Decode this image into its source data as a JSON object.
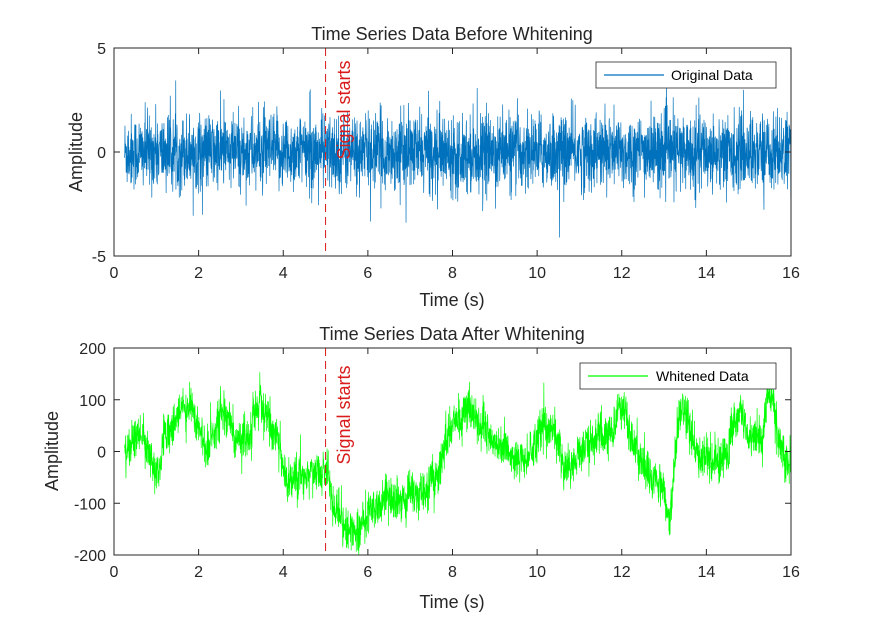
{
  "chart_data": [
    {
      "type": "line",
      "title": "Time Series Data Before Whitening",
      "xlabel": "Time (s)",
      "ylabel": "Amplitude",
      "xlim": [
        0,
        16
      ],
      "ylim": [
        -5,
        5
      ],
      "xticks": [
        0,
        2,
        4,
        6,
        8,
        10,
        12,
        14,
        16
      ],
      "yticks": [
        -5,
        0,
        5
      ],
      "legend": "top-right",
      "grid": false,
      "series": [
        {
          "name": "Original Data",
          "color": "#0072bd",
          "description": "dense noise, roughly ±1.5 typical amplitude, extremes near ±4",
          "x_start": 0.25,
          "x_end": 16,
          "amplitude_std": 1.0,
          "peak_max": 3.6,
          "peak_min": -4.1
        }
      ],
      "annotations": [
        {
          "type": "vline",
          "x": 5,
          "color": "#d91b1b",
          "style": "dashed",
          "label": "Signal starts"
        }
      ]
    },
    {
      "type": "line",
      "title": "Time Series Data After Whitening",
      "xlabel": "Time (s)",
      "ylabel": "Amplitude",
      "xlim": [
        0,
        16
      ],
      "ylim": [
        -200,
        200
      ],
      "xticks": [
        0,
        2,
        4,
        6,
        8,
        10,
        12,
        14,
        16
      ],
      "yticks": [
        -200,
        -100,
        0,
        100,
        200
      ],
      "legend": "top-right",
      "grid": false,
      "series": [
        {
          "name": "Whitened Data",
          "color": "#00ff00",
          "x_start": 0.25,
          "x_end": 16,
          "envelope_x": [
            0.25,
            0.6,
            1.0,
            1.3,
            1.8,
            2.2,
            2.6,
            3.0,
            3.4,
            3.8,
            4.1,
            4.5,
            5.0,
            5.3,
            5.7,
            6.2,
            6.8,
            7.5,
            8.0,
            8.4,
            9.0,
            9.6,
            10.2,
            10.8,
            11.3,
            11.7,
            12.0,
            12.4,
            12.9,
            13.1,
            13.4,
            13.8,
            14.3,
            14.8,
            15.2,
            15.5,
            15.8,
            16.0
          ],
          "envelope_y": [
            0,
            40,
            -30,
            50,
            90,
            20,
            70,
            10,
            75,
            40,
            -60,
            -50,
            -40,
            -120,
            -160,
            -100,
            -90,
            -70,
            50,
            80,
            20,
            -20,
            40,
            -20,
            30,
            20,
            80,
            -10,
            -60,
            -120,
            80,
            0,
            -10,
            60,
            10,
            110,
            -10,
            -30
          ],
          "noise_amplitude": 28
        }
      ],
      "annotations": [
        {
          "type": "vline",
          "x": 5,
          "color": "#d91b1b",
          "style": "dashed",
          "label": "Signal starts"
        }
      ]
    }
  ]
}
